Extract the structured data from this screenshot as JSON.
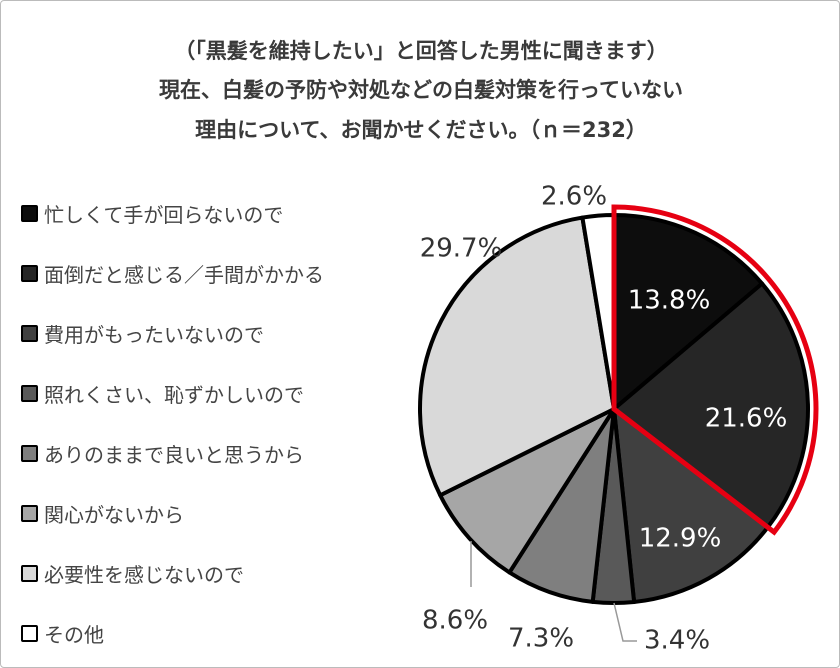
{
  "title_lines": [
    "（「黒髪を維持したい」と回答した男性に聞きます）",
    "現在、白髪の予防や対処などの白髪対策を行っていない",
    "理由について、お聞かせください。（ｎ＝232）"
  ],
  "chart_data": {
    "type": "pie",
    "start": "12 o'clock",
    "direction": "clockwise",
    "legend_position": "left",
    "categories": [
      "忙しくて手が回らないので",
      "面倒だと感じる／手間がかかる",
      "費用がもったいないので",
      "照れくさい、恥ずかしいので",
      "ありのままで良いと思うから",
      "関心がないから",
      "必要性を感じないので",
      "その他"
    ],
    "values": [
      13.8,
      21.6,
      12.9,
      3.4,
      7.3,
      8.6,
      29.7,
      2.6
    ],
    "data_labels": [
      "13.8%",
      "21.6%",
      "12.9%",
      "3.4%",
      "7.3%",
      "8.6%",
      "29.7%",
      "2.6%"
    ],
    "colors": [
      "#0d0d0d",
      "#262626",
      "#404040",
      "#595959",
      "#7f7f7f",
      "#a6a6a6",
      "#d9d9d9",
      "#ffffff"
    ],
    "highlighted_slices": [
      0,
      1
    ],
    "highlight_color": "#e60012"
  }
}
